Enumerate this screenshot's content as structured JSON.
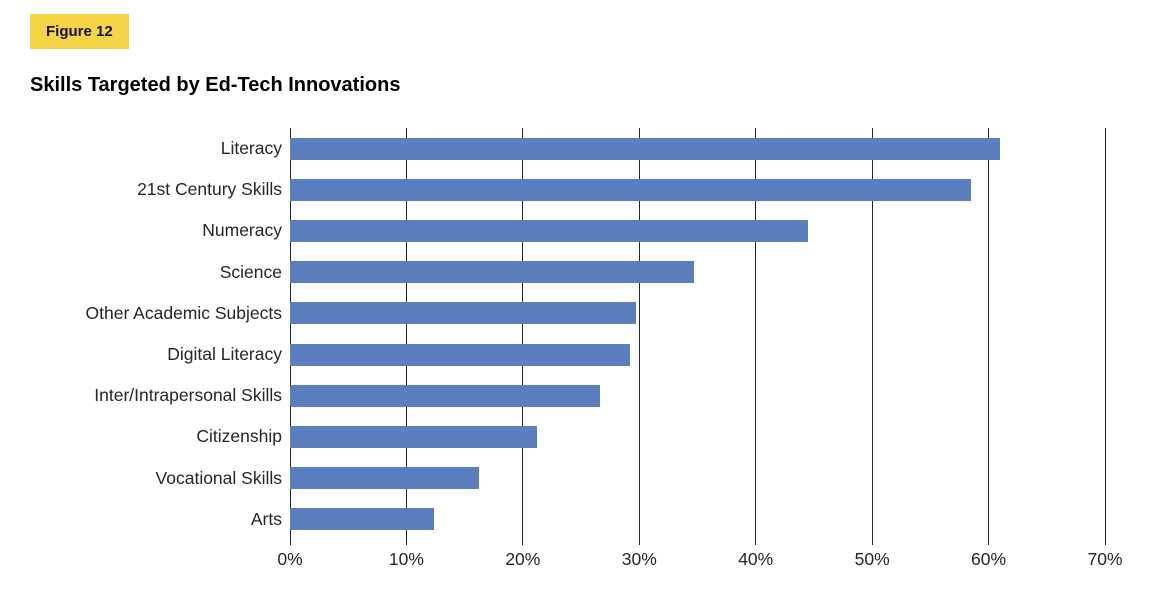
{
  "figure": {
    "badge": "Figure 12",
    "title": "Skills Targeted by Ed-Tech Innovations"
  },
  "chart_data": {
    "type": "bar",
    "orientation": "horizontal",
    "title": "Skills Targeted by Ed-Tech Innovations",
    "categories": [
      "Literacy",
      "21st Century Skills",
      "Numeracy",
      "Science",
      "Other Academic Subjects",
      "Digital Literacy",
      "Inter/Intrapersonal Skills",
      "Citizenship",
      "Vocational Skills",
      "Arts"
    ],
    "values": [
      61,
      58.5,
      44.5,
      34.7,
      29.7,
      29.2,
      26.6,
      21.2,
      16.2,
      12.4
    ],
    "xlabel": "",
    "ylabel": "",
    "xlim": [
      0,
      70
    ],
    "x_ticks": [
      0,
      10,
      20,
      30,
      40,
      50,
      60,
      70
    ],
    "x_tick_labels": [
      "0%",
      "10%",
      "20%",
      "30%",
      "40%",
      "50%",
      "60%",
      "70%"
    ],
    "grid": "vertical-gridlines-only",
    "legend": "none"
  },
  "colors": {
    "badge_bg": "#F5D446",
    "bar": "#5B7FBE",
    "gridline": "#262626",
    "label_text": "#262626",
    "title_text": "#000000"
  }
}
